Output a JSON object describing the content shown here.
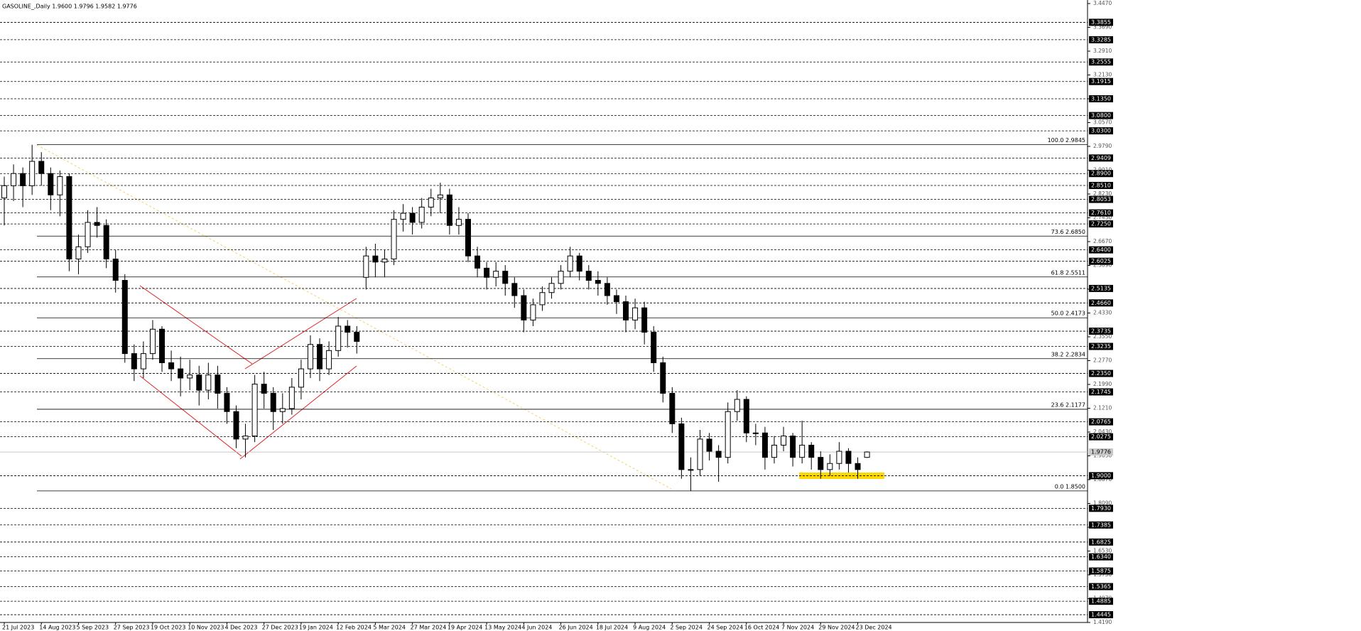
{
  "chart_data": {
    "type": "candlestick",
    "title": "GASOLINE_,Daily  1.9600 1.9796 1.9582 1.9776",
    "categories": [
      "21 Jul 2023",
      null,
      null,
      null,
      "14 Aug 2023",
      null,
      null,
      null,
      "5 Sep 2023",
      null,
      null,
      null,
      "27 Sep 2023",
      null,
      null,
      null,
      "19 Oct 2023",
      null,
      null,
      null,
      "10 Nov 2023",
      null,
      null,
      null,
      "4 Dec 2023",
      null,
      null,
      null,
      "27 Dec 2023",
      null,
      null,
      null,
      "19 Jan 2024",
      null,
      null,
      null,
      "12 Feb 2024",
      null,
      null,
      null,
      "5 Mar 2024",
      null,
      null,
      null,
      "27 Mar 2024",
      null,
      null,
      null,
      "19 Apr 2024",
      null,
      null,
      null,
      "13 May 2024",
      null,
      null,
      null,
      "4 Jun 2024",
      null,
      null,
      null,
      "26 Jun 2024",
      null,
      null,
      null,
      "18 Jul 2024",
      null,
      null,
      null,
      "9 Aug 2024",
      null,
      null,
      null,
      "2 Sep 2024",
      null,
      null,
      null,
      "24 Sep 2024",
      null,
      null,
      null,
      "16 Oct 2024",
      null,
      null,
      null,
      "7 Nov 2024",
      null,
      null,
      null,
      "29 Nov 2024",
      null,
      null,
      null,
      "23 Dec 2024",
      null
    ],
    "open": [
      2.81,
      2.85,
      2.89,
      2.85,
      2.93,
      2.89,
      2.82,
      2.88,
      2.61,
      2.65,
      2.73,
      2.72,
      2.61,
      2.54,
      2.3,
      2.25,
      2.3,
      2.38,
      2.27,
      2.25,
      2.22,
      2.23,
      2.18,
      2.23,
      2.17,
      2.11,
      2.02,
      2.03,
      2.2,
      2.17,
      2.11,
      2.12,
      2.19,
      2.25,
      2.33,
      2.25,
      2.31,
      2.39,
      2.37,
      2.55,
      2.62,
      2.6,
      2.61,
      2.74,
      2.76,
      2.73,
      2.78,
      2.81,
      2.82,
      2.72,
      2.74,
      2.62,
      2.58,
      2.55,
      2.57,
      2.53,
      2.49,
      2.41,
      2.46,
      2.5,
      2.53,
      2.57,
      2.62,
      2.57,
      2.54,
      2.53,
      2.49,
      2.47,
      2.41,
      2.45,
      2.37,
      2.27,
      2.17,
      2.07,
      1.92,
      1.92,
      2.02,
      1.98,
      1.96,
      2.11,
      2.15,
      2.04,
      2.04,
      1.96,
      2.0,
      2.03,
      1.96,
      2.0,
      1.96,
      1.92,
      1.94,
      1.98,
      1.94,
      1.96
    ],
    "high": [
      2.88,
      2.92,
      2.91,
      2.9845,
      2.96,
      2.91,
      2.9,
      2.89,
      2.69,
      2.77,
      2.78,
      2.74,
      2.64,
      2.56,
      2.33,
      2.34,
      2.41,
      2.39,
      2.31,
      2.29,
      2.28,
      2.26,
      2.27,
      2.26,
      2.19,
      2.13,
      2.07,
      2.23,
      2.24,
      2.19,
      2.17,
      2.22,
      2.28,
      2.36,
      2.35,
      2.34,
      2.42,
      2.41,
      2.39,
      2.65,
      2.66,
      2.64,
      2.77,
      2.79,
      2.78,
      2.81,
      2.84,
      2.86,
      2.84,
      2.78,
      2.76,
      2.65,
      2.6,
      2.6,
      2.59,
      2.55,
      2.51,
      2.48,
      2.52,
      2.55,
      2.59,
      2.65,
      2.63,
      2.59,
      2.57,
      2.55,
      2.51,
      2.49,
      2.48,
      2.47,
      2.39,
      2.29,
      2.19,
      2.09,
      1.96,
      2.05,
      2.04,
      2.0,
      2.14,
      2.18,
      2.16,
      2.07,
      2.06,
      2.03,
      2.06,
      2.04,
      2.08,
      2.01,
      1.98,
      1.97,
      2.01,
      1.99,
      1.96,
      1.9796
    ],
    "low": [
      2.72,
      2.8,
      2.78,
      2.82,
      2.85,
      2.77,
      2.75,
      2.57,
      2.56,
      2.63,
      2.68,
      2.58,
      2.5,
      2.27,
      2.21,
      2.22,
      2.28,
      2.24,
      2.21,
      2.16,
      2.18,
      2.13,
      2.15,
      2.12,
      2.07,
      1.99,
      1.96,
      2.01,
      2.12,
      2.05,
      2.07,
      2.1,
      2.15,
      2.22,
      2.21,
      2.23,
      2.29,
      2.32,
      2.3,
      2.51,
      2.55,
      2.55,
      2.59,
      2.7,
      2.69,
      2.71,
      2.75,
      2.76,
      2.69,
      2.69,
      2.6,
      2.55,
      2.51,
      2.52,
      2.49,
      2.45,
      2.37,
      2.39,
      2.44,
      2.48,
      2.51,
      2.55,
      2.54,
      2.51,
      2.49,
      2.46,
      2.43,
      2.37,
      2.38,
      2.33,
      2.24,
      2.14,
      2.04,
      1.89,
      1.85,
      1.9,
      1.95,
      1.88,
      1.94,
      2.08,
      2.01,
      2.0,
      1.92,
      1.94,
      1.98,
      1.93,
      1.94,
      1.92,
      1.89,
      1.9,
      1.92,
      1.91,
      1.89,
      1.9582
    ],
    "close": [
      2.85,
      2.89,
      2.85,
      2.93,
      2.89,
      2.82,
      2.88,
      2.61,
      2.65,
      2.73,
      2.72,
      2.61,
      2.54,
      2.3,
      2.25,
      2.3,
      2.38,
      2.27,
      2.25,
      2.22,
      2.23,
      2.18,
      2.23,
      2.17,
      2.11,
      2.02,
      2.03,
      2.2,
      2.17,
      2.11,
      2.12,
      2.19,
      2.25,
      2.33,
      2.25,
      2.31,
      2.39,
      2.37,
      2.34,
      2.62,
      2.6,
      2.61,
      2.74,
      2.76,
      2.73,
      2.78,
      2.81,
      2.82,
      2.72,
      2.74,
      2.62,
      2.58,
      2.55,
      2.57,
      2.53,
      2.49,
      2.41,
      2.46,
      2.5,
      2.53,
      2.57,
      2.62,
      2.57,
      2.54,
      2.53,
      2.49,
      2.47,
      2.41,
      2.45,
      2.37,
      2.27,
      2.17,
      2.07,
      1.92,
      1.92,
      2.02,
      1.98,
      1.96,
      2.11,
      2.15,
      2.04,
      2.04,
      1.96,
      2.0,
      2.03,
      1.96,
      2.0,
      1.96,
      1.92,
      1.94,
      1.98,
      1.94,
      1.92,
      1.9776
    ],
    "ylim": [
      1.419,
      3.447
    ],
    "yticks": [
      {
        "value": 3.447,
        "label": "3.4470"
      },
      {
        "value": 3.369,
        "label": "3.3690"
      },
      {
        "value": 3.291,
        "label": "3.2910"
      },
      {
        "value": 3.213,
        "label": "3.2130"
      },
      {
        "value": 3.135,
        "label": "3.1350"
      },
      {
        "value": 3.057,
        "label": "3.0570"
      },
      {
        "value": 2.979,
        "label": "2.9790"
      },
      {
        "value": 2.901,
        "label": "2.9010"
      },
      {
        "value": 2.823,
        "label": "2.8230"
      },
      {
        "value": 2.745,
        "label": "2.7450"
      },
      {
        "value": 2.667,
        "label": "2.6670"
      },
      {
        "value": 2.589,
        "label": "2.5890"
      },
      {
        "value": 2.511,
        "label": "2.5110"
      },
      {
        "value": 2.433,
        "label": "2.4330"
      },
      {
        "value": 2.355,
        "label": "2.3550"
      },
      {
        "value": 2.277,
        "label": "2.2770"
      },
      {
        "value": 2.199,
        "label": "2.1990"
      },
      {
        "value": 2.121,
        "label": "2.1210"
      },
      {
        "value": 2.043,
        "label": "2.0430"
      },
      {
        "value": 1.965,
        "label": "1.9650"
      },
      {
        "value": 1.887,
        "label": "1.8870"
      },
      {
        "value": 1.809,
        "label": "1.8090"
      },
      {
        "value": 1.731,
        "label": "1.7310"
      },
      {
        "value": 1.653,
        "label": "1.6530"
      },
      {
        "value": 1.575,
        "label": "1.5750"
      },
      {
        "value": 1.497,
        "label": "1.4970"
      },
      {
        "value": 1.419,
        "label": "1.4190"
      }
    ],
    "levels": [
      3.3855,
      3.3285,
      3.2555,
      3.1915,
      {
        "value": 3.135,
        "label": "3.1350"
      },
      {
        "value": 3.08,
        "label": "3.0800"
      },
      {
        "value": 3.03,
        "label": "3.0300"
      },
      2.9409,
      {
        "value": 2.89,
        "label": "2.8900"
      },
      {
        "value": 2.851,
        "label": "2.8510"
      },
      2.8053,
      {
        "value": 2.761,
        "label": "2.7610"
      },
      {
        "value": 2.725,
        "label": "2.7250"
      },
      {
        "value": 2.64,
        "label": "2.6400"
      },
      2.6025,
      2.5135,
      {
        "value": 2.466,
        "label": "2.4660"
      },
      2.3735,
      2.3235,
      {
        "value": 2.235,
        "label": "2.2350"
      },
      2.1745,
      2.0765,
      2.0275,
      {
        "value": 1.9,
        "label": "1.9000"
      },
      {
        "value": 1.793,
        "label": "1.7930"
      },
      1.7385,
      1.6825,
      {
        "value": 1.634,
        "label": "1.6340"
      },
      1.5875,
      1.5365,
      1.4885,
      1.4445
    ],
    "fib_levels": [
      {
        "value": 2.9845,
        "label": "100.0 2.9845"
      },
      {
        "value": 2.685,
        "label": "73.6 2.6850"
      },
      {
        "value": 2.5511,
        "label": "61.8 2.5511"
      },
      {
        "value": 2.4173,
        "label": "50.0 2.4173"
      },
      {
        "value": 2.2834,
        "label": "38.2 2.2834"
      },
      {
        "value": 2.1177,
        "label": "23.6 2.1177"
      },
      {
        "value": 1.85,
        "label": "0.0 1.8500"
      }
    ],
    "last_price": 1.9776
  }
}
